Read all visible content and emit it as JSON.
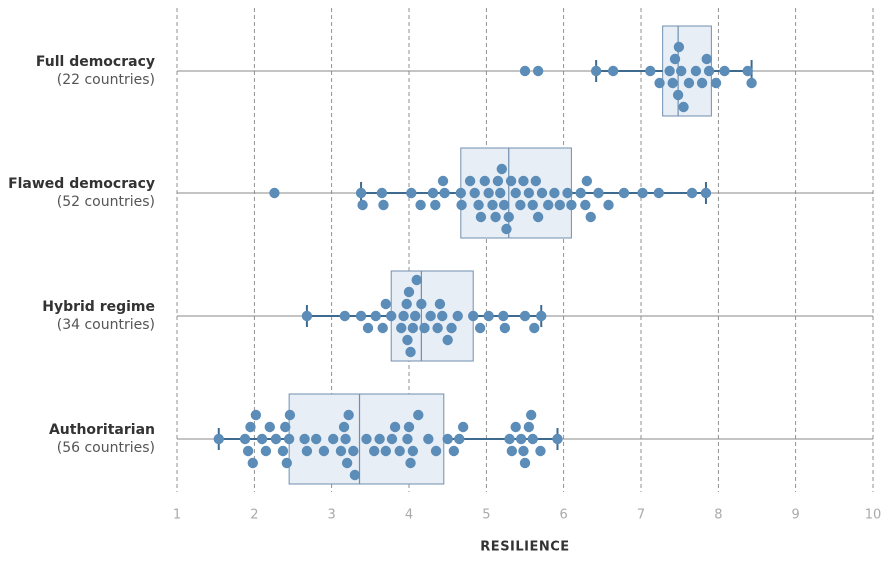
{
  "chart_data": {
    "type": "box-swarm",
    "x_label": "RESILIENCE",
    "xlim": [
      1,
      10
    ],
    "xticks": [
      1,
      2,
      3,
      4,
      5,
      6,
      7,
      8,
      9,
      10
    ],
    "grid": true,
    "color": "#5b8db8",
    "box_color": "#e8eef6",
    "series": [
      {
        "name": "Full democracy",
        "subtitle": "(22 countries)",
        "box": {
          "min": 6.42,
          "q1": 7.28,
          "median": 7.48,
          "q3": 7.91,
          "max": 8.43
        },
        "values": [
          5.5,
          5.67,
          6.42,
          6.64,
          7.12,
          7.24,
          7.37,
          7.41,
          7.44,
          7.48,
          7.49,
          7.52,
          7.55,
          7.62,
          7.71,
          7.79,
          7.85,
          7.88,
          7.97,
          8.08,
          8.38,
          8.43
        ]
      },
      {
        "name": "Flawed democracy",
        "subtitle": "(52 countries)",
        "box": {
          "min": 3.38,
          "q1": 4.67,
          "median": 5.29,
          "q3": 6.1,
          "max": 7.84
        },
        "values": [
          2.26,
          3.38,
          3.4,
          3.65,
          3.67,
          4.03,
          4.15,
          4.31,
          4.34,
          4.44,
          4.46,
          4.67,
          4.68,
          4.79,
          4.85,
          4.9,
          4.93,
          4.98,
          5.03,
          5.08,
          5.12,
          5.15,
          5.18,
          5.2,
          5.23,
          5.26,
          5.29,
          5.32,
          5.38,
          5.44,
          5.48,
          5.55,
          5.6,
          5.64,
          5.67,
          5.72,
          5.8,
          5.88,
          5.95,
          6.05,
          6.1,
          6.22,
          6.28,
          6.3,
          6.35,
          6.45,
          6.58,
          6.78,
          7.02,
          7.23,
          7.66,
          7.84
        ]
      },
      {
        "name": "Hybrid regime",
        "subtitle": "(34 countries)",
        "box": {
          "min": 2.68,
          "q1": 3.77,
          "median": 4.16,
          "q3": 4.83,
          "max": 5.71
        },
        "values": [
          2.68,
          3.17,
          3.38,
          3.47,
          3.57,
          3.66,
          3.7,
          3.77,
          3.9,
          3.93,
          3.97,
          3.98,
          4.0,
          4.02,
          4.05,
          4.08,
          4.1,
          4.16,
          4.2,
          4.28,
          4.37,
          4.4,
          4.43,
          4.5,
          4.55,
          4.63,
          4.83,
          4.92,
          5.03,
          5.22,
          5.24,
          5.5,
          5.62,
          5.71
        ]
      },
      {
        "name": "Authoritarian",
        "subtitle": "(56 countries)",
        "box": {
          "min": 1.54,
          "q1": 2.45,
          "median": 3.36,
          "q3": 4.45,
          "max": 5.92
        },
        "values": [
          1.54,
          1.88,
          1.92,
          1.95,
          1.98,
          2.02,
          2.1,
          2.15,
          2.2,
          2.28,
          2.37,
          2.4,
          2.42,
          2.45,
          2.46,
          2.65,
          2.68,
          2.8,
          2.9,
          3.02,
          3.12,
          3.16,
          3.18,
          3.2,
          3.22,
          3.28,
          3.3,
          3.45,
          3.55,
          3.62,
          3.7,
          3.78,
          3.82,
          3.88,
          3.98,
          4.0,
          4.02,
          4.05,
          4.12,
          4.25,
          4.35,
          4.5,
          4.58,
          4.65,
          4.7,
          5.3,
          5.33,
          5.38,
          5.45,
          5.48,
          5.5,
          5.55,
          5.58,
          5.6,
          5.7,
          5.92
        ]
      }
    ]
  }
}
